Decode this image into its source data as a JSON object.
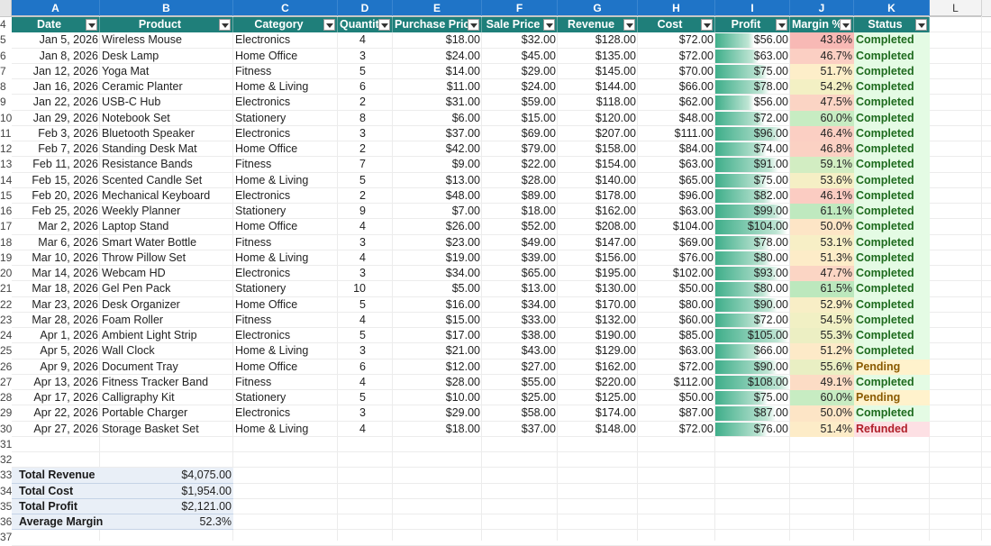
{
  "columns": {
    "letters": [
      "A",
      "B",
      "C",
      "D",
      "E",
      "F",
      "G",
      "H",
      "I",
      "J",
      "K",
      "L"
    ],
    "row_numbers_top": [
      "4",
      "5",
      "6",
      "7",
      "8",
      "9",
      "10",
      "11",
      "12",
      "13",
      "14",
      "15",
      "16",
      "17",
      "18",
      "19",
      "20",
      "21",
      "22",
      "23",
      "24",
      "25",
      "26",
      "27",
      "28",
      "29",
      "30",
      "31",
      "32",
      "33",
      "34",
      "35",
      "36",
      "37"
    ]
  },
  "headers": [
    "Date",
    "Product",
    "Category",
    "Quantity",
    "Purchase Price",
    "Sale Price",
    "Revenue",
    "Cost",
    "Profit",
    "Margin %",
    "Status"
  ],
  "rows": [
    {
      "date": "Jan 5, 2026",
      "product": "Wireless Mouse",
      "category": "Electronics",
      "qty": "4",
      "pp": "$18.00",
      "sp": "$32.00",
      "rev": "$128.00",
      "cost": "$72.00",
      "profit": "$56.00",
      "profit_num": 56,
      "margin": "43.8%",
      "margin_color": "#f8b9b5",
      "status": "Completed"
    },
    {
      "date": "Jan 8, 2026",
      "product": "Desk Lamp",
      "category": "Home Office",
      "qty": "3",
      "pp": "$24.00",
      "sp": "$45.00",
      "rev": "$135.00",
      "cost": "$72.00",
      "profit": "$63.00",
      "profit_num": 63,
      "margin": "46.7%",
      "margin_color": "#fbcfc3",
      "status": "Completed"
    },
    {
      "date": "Jan 12, 2026",
      "product": "Yoga Mat",
      "category": "Fitness",
      "qty": "5",
      "pp": "$14.00",
      "sp": "$29.00",
      "rev": "$145.00",
      "cost": "$70.00",
      "profit": "$75.00",
      "profit_num": 75,
      "margin": "51.7%",
      "margin_color": "#fdeec9",
      "status": "Completed"
    },
    {
      "date": "Jan 16, 2026",
      "product": "Ceramic Planter",
      "category": "Home & Living",
      "qty": "6",
      "pp": "$11.00",
      "sp": "$24.00",
      "rev": "$144.00",
      "cost": "$66.00",
      "profit": "$78.00",
      "profit_num": 78,
      "margin": "54.2%",
      "margin_color": "#f3f0c4",
      "status": "Completed"
    },
    {
      "date": "Jan 22, 2026",
      "product": "USB-C Hub",
      "category": "Electronics",
      "qty": "2",
      "pp": "$31.00",
      "sp": "$59.00",
      "rev": "$118.00",
      "cost": "$62.00",
      "profit": "$56.00",
      "profit_num": 56,
      "margin": "47.5%",
      "margin_color": "#fbd4c4",
      "status": "Completed"
    },
    {
      "date": "Jan 29, 2026",
      "product": "Notebook Set",
      "category": "Stationery",
      "qty": "8",
      "pp": "$6.00",
      "sp": "$15.00",
      "rev": "$120.00",
      "cost": "$48.00",
      "profit": "$72.00",
      "profit_num": 72,
      "margin": "60.0%",
      "margin_color": "#c7ecc2",
      "status": "Completed"
    },
    {
      "date": "Feb 3, 2026",
      "product": "Bluetooth Speaker",
      "category": "Electronics",
      "qty": "3",
      "pp": "$37.00",
      "sp": "$69.00",
      "rev": "$207.00",
      "cost": "$111.00",
      "profit": "$96.00",
      "profit_num": 96,
      "margin": "46.4%",
      "margin_color": "#fbcfc3",
      "status": "Completed"
    },
    {
      "date": "Feb 7, 2026",
      "product": "Standing Desk Mat",
      "category": "Home Office",
      "qty": "2",
      "pp": "$42.00",
      "sp": "$79.00",
      "rev": "$158.00",
      "cost": "$84.00",
      "profit": "$74.00",
      "profit_num": 74,
      "margin": "46.8%",
      "margin_color": "#fbd1c3",
      "status": "Completed"
    },
    {
      "date": "Feb 11, 2026",
      "product": "Resistance Bands",
      "category": "Fitness",
      "qty": "7",
      "pp": "$9.00",
      "sp": "$22.00",
      "rev": "$154.00",
      "cost": "$63.00",
      "profit": "$91.00",
      "profit_num": 91,
      "margin": "59.1%",
      "margin_color": "#d2edc2",
      "status": "Completed"
    },
    {
      "date": "Feb 15, 2026",
      "product": "Scented Candle Set",
      "category": "Home & Living",
      "qty": "5",
      "pp": "$13.00",
      "sp": "$28.00",
      "rev": "$140.00",
      "cost": "$65.00",
      "profit": "$75.00",
      "profit_num": 75,
      "margin": "53.6%",
      "margin_color": "#f5efc5",
      "status": "Completed"
    },
    {
      "date": "Feb 20, 2026",
      "product": "Mechanical Keyboard",
      "category": "Electronics",
      "qty": "2",
      "pp": "$48.00",
      "sp": "$89.00",
      "rev": "$178.00",
      "cost": "$96.00",
      "profit": "$82.00",
      "profit_num": 82,
      "margin": "46.1%",
      "margin_color": "#fbccc2",
      "status": "Completed"
    },
    {
      "date": "Feb 25, 2026",
      "product": "Weekly Planner",
      "category": "Stationery",
      "qty": "9",
      "pp": "$7.00",
      "sp": "$18.00",
      "rev": "$162.00",
      "cost": "$63.00",
      "profit": "$99.00",
      "profit_num": 99,
      "margin": "61.1%",
      "margin_color": "#bfe9bf",
      "status": "Completed"
    },
    {
      "date": "Mar 2, 2026",
      "product": "Laptop Stand",
      "category": "Home Office",
      "qty": "4",
      "pp": "$26.00",
      "sp": "$52.00",
      "rev": "$208.00",
      "cost": "$104.00",
      "profit": "$104.00",
      "profit_num": 104,
      "margin": "50.0%",
      "margin_color": "#fde5c6",
      "status": "Completed"
    },
    {
      "date": "Mar 6, 2026",
      "product": "Smart Water Bottle",
      "category": "Fitness",
      "qty": "3",
      "pp": "$23.00",
      "sp": "$49.00",
      "rev": "$147.00",
      "cost": "$69.00",
      "profit": "$78.00",
      "profit_num": 78,
      "margin": "53.1%",
      "margin_color": "#f7efc6",
      "status": "Completed"
    },
    {
      "date": "Mar 10, 2026",
      "product": "Throw Pillow Set",
      "category": "Home & Living",
      "qty": "4",
      "pp": "$19.00",
      "sp": "$39.00",
      "rev": "$156.00",
      "cost": "$76.00",
      "profit": "$80.00",
      "profit_num": 80,
      "margin": "51.3%",
      "margin_color": "#fdecc8",
      "status": "Completed"
    },
    {
      "date": "Mar 14, 2026",
      "product": "Webcam HD",
      "category": "Electronics",
      "qty": "3",
      "pp": "$34.00",
      "sp": "$65.00",
      "rev": "$195.00",
      "cost": "$102.00",
      "profit": "$93.00",
      "profit_num": 93,
      "margin": "47.7%",
      "margin_color": "#fbd5c4",
      "status": "Completed"
    },
    {
      "date": "Mar 18, 2026",
      "product": "Gel Pen Pack",
      "category": "Stationery",
      "qty": "10",
      "pp": "$5.00",
      "sp": "$13.00",
      "rev": "$130.00",
      "cost": "$50.00",
      "profit": "$80.00",
      "profit_num": 80,
      "margin": "61.5%",
      "margin_color": "#bce8bd",
      "status": "Completed"
    },
    {
      "date": "Mar 23, 2026",
      "product": "Desk Organizer",
      "category": "Home Office",
      "qty": "5",
      "pp": "$16.00",
      "sp": "$34.00",
      "rev": "$170.00",
      "cost": "$80.00",
      "profit": "$90.00",
      "profit_num": 90,
      "margin": "52.9%",
      "margin_color": "#f8eec6",
      "status": "Completed"
    },
    {
      "date": "Mar 28, 2026",
      "product": "Foam Roller",
      "category": "Fitness",
      "qty": "4",
      "pp": "$15.00",
      "sp": "$33.00",
      "rev": "$132.00",
      "cost": "$60.00",
      "profit": "$72.00",
      "profit_num": 72,
      "margin": "54.5%",
      "margin_color": "#f1f0c4",
      "status": "Completed"
    },
    {
      "date": "Apr 1, 2026",
      "product": "Ambient Light Strip",
      "category": "Electronics",
      "qty": "5",
      "pp": "$17.00",
      "sp": "$38.00",
      "rev": "$190.00",
      "cost": "$85.00",
      "profit": "$105.00",
      "profit_num": 105,
      "margin": "55.3%",
      "margin_color": "#ecefc3",
      "status": "Completed"
    },
    {
      "date": "Apr 5, 2026",
      "product": "Wall Clock",
      "category": "Home & Living",
      "qty": "3",
      "pp": "$21.00",
      "sp": "$43.00",
      "rev": "$129.00",
      "cost": "$63.00",
      "profit": "$66.00",
      "profit_num": 66,
      "margin": "51.2%",
      "margin_color": "#fdeac8",
      "status": "Completed"
    },
    {
      "date": "Apr 9, 2026",
      "product": "Document Tray",
      "category": "Home Office",
      "qty": "6",
      "pp": "$12.00",
      "sp": "$27.00",
      "rev": "$162.00",
      "cost": "$72.00",
      "profit": "$90.00",
      "profit_num": 90,
      "margin": "55.6%",
      "margin_color": "#e9efc3",
      "status": "Pending"
    },
    {
      "date": "Apr 13, 2026",
      "product": "Fitness Tracker Band",
      "category": "Fitness",
      "qty": "4",
      "pp": "$28.00",
      "sp": "$55.00",
      "rev": "$220.00",
      "cost": "$112.00",
      "profit": "$108.00",
      "profit_num": 108,
      "margin": "49.1%",
      "margin_color": "#fcdcc5",
      "status": "Completed"
    },
    {
      "date": "Apr 17, 2026",
      "product": "Calligraphy Kit",
      "category": "Stationery",
      "qty": "5",
      "pp": "$10.00",
      "sp": "$25.00",
      "rev": "$125.00",
      "cost": "$50.00",
      "profit": "$75.00",
      "profit_num": 75,
      "margin": "60.0%",
      "margin_color": "#c7ecc2",
      "status": "Pending"
    },
    {
      "date": "Apr 22, 2026",
      "product": "Portable Charger",
      "category": "Electronics",
      "qty": "3",
      "pp": "$29.00",
      "sp": "$58.00",
      "rev": "$174.00",
      "cost": "$87.00",
      "profit": "$87.00",
      "profit_num": 87,
      "margin": "50.0%",
      "margin_color": "#fde5c6",
      "status": "Completed"
    },
    {
      "date": "Apr 27, 2026",
      "product": "Storage Basket Set",
      "category": "Home & Living",
      "qty": "4",
      "pp": "$18.00",
      "sp": "$37.00",
      "rev": "$148.00",
      "cost": "$72.00",
      "profit": "$76.00",
      "profit_num": 76,
      "margin": "51.4%",
      "margin_color": "#fdecc8",
      "status": "Refunded"
    }
  ],
  "status_styles": {
    "Completed": {
      "bg": "#e4fbe4",
      "fg": "#1e6b1e"
    },
    "Pending": {
      "bg": "#fff2cc",
      "fg": "#8a5a00"
    },
    "Refunded": {
      "bg": "#fde0e4",
      "fg": "#b0202a"
    }
  },
  "summary": [
    {
      "label": "Total Revenue",
      "value": "$4,075.00"
    },
    {
      "label": "Total Cost",
      "value": "$1,954.00"
    },
    {
      "label": "Total Profit",
      "value": "$2,121.00"
    },
    {
      "label": "Average Margin",
      "value": "52.3%"
    }
  ],
  "colors": {
    "header_bg": "#1f7f7a",
    "selected_col": "#1f74c7",
    "bar_green": "#3fae8a"
  }
}
